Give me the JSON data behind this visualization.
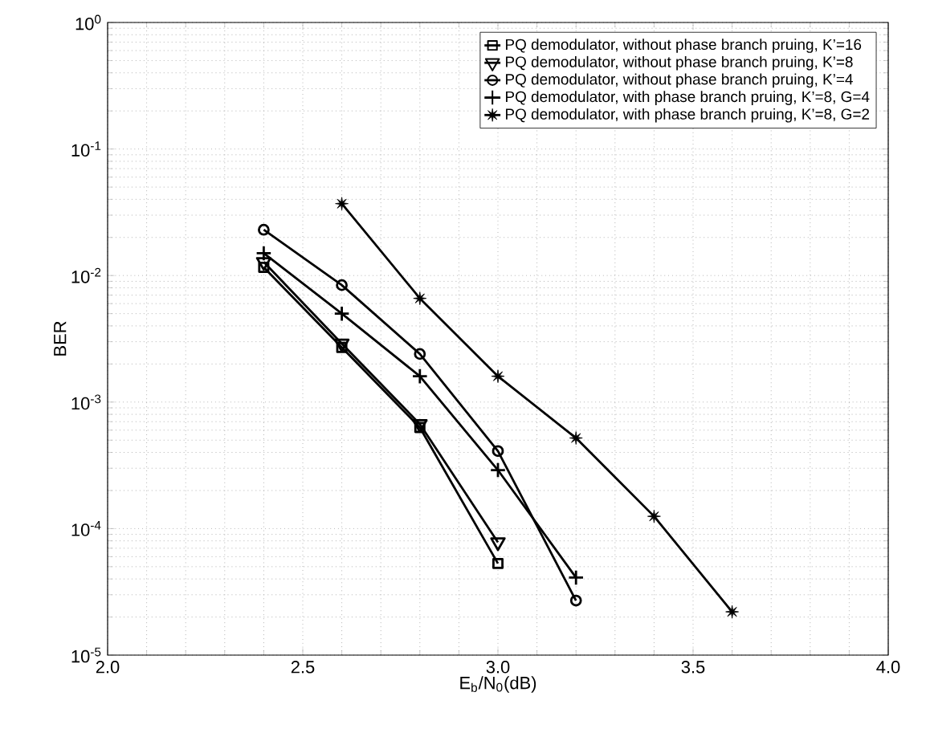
{
  "chart_data": {
    "type": "line",
    "xlabel": "E$_{b}$/N$_{0}$(dB)",
    "ylabel": "BER",
    "log": "y",
    "grid": true,
    "legend": "top right",
    "line_style": "solid",
    "xlim": [
      2.0,
      4.0
    ],
    "ylim": [
      1e-05,
      1
    ],
    "xticks": [
      {
        "value": 2.0,
        "label": "2.0"
      },
      {
        "value": 2.5,
        "label": "2.5"
      },
      {
        "value": 3.0,
        "label": "3.0"
      },
      {
        "value": 3.5,
        "label": "3.5"
      },
      {
        "value": 4.0,
        "label": "4.0"
      }
    ],
    "yticks": [
      {
        "value": 1e-05,
        "label": "10$^{-5}$"
      },
      {
        "value": 0.0001,
        "label": "10$^{-4}$"
      },
      {
        "value": 0.001,
        "label": "10$^{-3}$"
      },
      {
        "value": 0.01,
        "label": "10$^{-2}$"
      },
      {
        "value": 0.1,
        "label": "10$^{-1}$"
      },
      {
        "value": 1,
        "label": "10$^{0}$"
      }
    ],
    "series": [
      {
        "name": "PQ demodulator, without phase branch pruing, K’=16",
        "color": "#000000",
        "marker": "square",
        "x": [
          2.4,
          2.6,
          2.8,
          3.0
        ],
        "values": [
          0.0116,
          0.0027,
          0.00063,
          5.3e-05
        ]
      },
      {
        "name": "PQ demodulator, without phase branch pruing, K’=8",
        "color": "#000000",
        "marker": "triangle",
        "x": [
          2.4,
          2.6,
          2.8,
          3.0
        ],
        "values": [
          0.0128,
          0.0029,
          0.00067,
          7.8e-05
        ]
      },
      {
        "name": "PQ demodulator, without phase branch pruing, K’=4",
        "color": "#000000",
        "marker": "circle",
        "x": [
          2.4,
          2.6,
          2.8,
          3.0,
          3.2
        ],
        "values": [
          0.023,
          0.0084,
          0.0024,
          0.00041,
          2.7e-05
        ]
      },
      {
        "name": "PQ demodulator, with phase branch pruing, K’=8, G=4",
        "color": "#000000",
        "marker": "cross",
        "x": [
          2.4,
          2.6,
          2.8,
          3.0,
          3.2
        ],
        "values": [
          0.015,
          0.005,
          0.0016,
          0.00029,
          4.1e-05
        ]
      },
      {
        "name": "PQ demodulator, with phase branch pruing, K’=8, G=2",
        "color": "#000000",
        "marker": "star",
        "x": [
          2.6,
          2.8,
          3.0,
          3.2,
          3.4,
          3.6
        ],
        "values": [
          0.037,
          0.0066,
          0.0016,
          0.00052,
          0.000125,
          2.2e-05
        ]
      }
    ]
  }
}
